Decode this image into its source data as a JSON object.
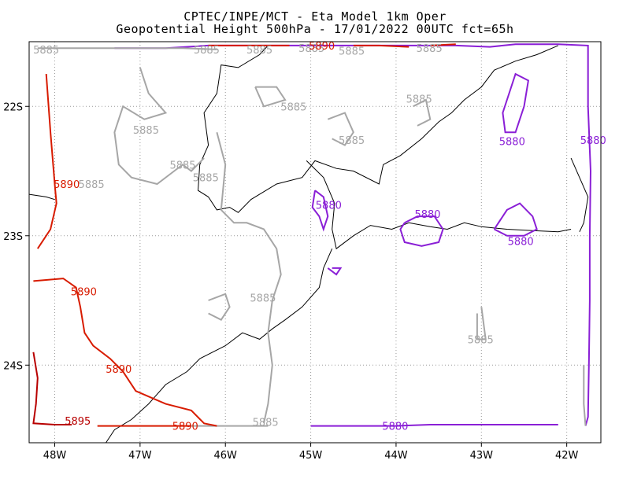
{
  "title_line1": "CPTEC/INPE/MCT -  Eta Model 1km Oper",
  "title_line2": "Geopotential Height 500hPa - 17/01/2022 00UTC fct=65h",
  "colors": {
    "c5880": "#8a1fd6",
    "c5885": "#a6a6a6",
    "c5890": "#d81b00",
    "c5895": "#b80000",
    "coast": "#000000",
    "grid": "#999999"
  },
  "chart_data": {
    "type": "contour",
    "title": "CPTEC/INPE/MCT -  Eta Model 1km Oper",
    "subtitle": "Geopotential Height 500hPa - 17/01/2022 00UTC fct=65h",
    "xlim": [
      -48.3,
      -41.6
    ],
    "ylim": [
      -24.6,
      -21.5
    ],
    "xticks": [
      {
        "value": -48,
        "label": "48W"
      },
      {
        "value": -47,
        "label": "47W"
      },
      {
        "value": -46,
        "label": "46W"
      },
      {
        "value": -45,
        "label": "45W"
      },
      {
        "value": -44,
        "label": "44W"
      },
      {
        "value": -43,
        "label": "43W"
      },
      {
        "value": -42,
        "label": "42W"
      }
    ],
    "yticks": [
      {
        "value": -22,
        "label": "22S"
      },
      {
        "value": -23,
        "label": "23S"
      },
      {
        "value": -24,
        "label": "24S"
      }
    ],
    "grid": true,
    "contours": [
      {
        "level": 5880,
        "label": "5880",
        "color": "#8a1fd6",
        "lines": [
          [
            [
              -42.7,
              -21.95
            ],
            [
              -42.6,
              -21.75
            ],
            [
              -42.45,
              -21.8
            ],
            [
              -42.5,
              -22.0
            ],
            [
              -42.6,
              -22.2
            ],
            [
              -42.72,
              -22.2
            ],
            [
              -42.75,
              -22.05
            ],
            [
              -42.7,
              -21.95
            ]
          ],
          [
            [
              -43.9,
              -22.9
            ],
            [
              -43.75,
              -22.85
            ],
            [
              -43.55,
              -22.85
            ],
            [
              -43.45,
              -22.95
            ],
            [
              -43.5,
              -23.05
            ],
            [
              -43.7,
              -23.08
            ],
            [
              -43.9,
              -23.05
            ],
            [
              -43.95,
              -22.95
            ],
            [
              -43.9,
              -22.9
            ]
          ],
          [
            [
              -42.85,
              -22.95
            ],
            [
              -42.7,
              -22.8
            ],
            [
              -42.55,
              -22.75
            ],
            [
              -42.4,
              -22.85
            ],
            [
              -42.35,
              -22.95
            ],
            [
              -42.5,
              -23.0
            ],
            [
              -42.7,
              -23.0
            ],
            [
              -42.85,
              -22.95
            ]
          ],
          [
            [
              -44.95,
              -22.65
            ],
            [
              -44.85,
              -22.7
            ],
            [
              -44.8,
              -22.85
            ],
            [
              -44.85,
              -22.95
            ],
            [
              -44.9,
              -22.85
            ],
            [
              -44.98,
              -22.78
            ],
            [
              -44.95,
              -22.65
            ]
          ],
          [
            [
              -44.8,
              -23.25
            ],
            [
              -44.7,
              -23.3
            ],
            [
              -44.65,
              -23.25
            ],
            [
              -44.75,
              -23.25
            ]
          ],
          [
            [
              -45.0,
              -24.47
            ],
            [
              -44.4,
              -24.47
            ],
            [
              -44.0,
              -24.47
            ],
            [
              -43.6,
              -24.46
            ],
            [
              -43.2,
              -24.46
            ],
            [
              -42.8,
              -24.46
            ],
            [
              -42.4,
              -24.46
            ],
            [
              -42.1,
              -24.46
            ]
          ],
          [
            [
              -47.3,
              -21.55
            ],
            [
              -46.7,
              -21.55
            ],
            [
              -46.2,
              -21.53
            ],
            [
              -45.6,
              -21.53
            ],
            [
              -45.0,
              -21.53
            ],
            [
              -44.4,
              -21.53
            ],
            [
              -43.9,
              -21.53
            ],
            [
              -43.3,
              -21.53
            ],
            [
              -42.9,
              -21.54
            ],
            [
              -42.6,
              -21.52
            ],
            [
              -42.1,
              -21.52
            ],
            [
              -41.75,
              -21.53
            ],
            [
              -41.75,
              -22.0
            ],
            [
              -41.72,
              -22.5
            ],
            [
              -41.73,
              -23.0
            ],
            [
              -41.73,
              -23.5
            ],
            [
              -41.74,
              -24.0
            ],
            [
              -41.75,
              -24.4
            ],
            [
              -41.78,
              -24.47
            ]
          ]
        ],
        "labels": [
          [
            -42.64,
            -22.27
          ],
          [
            -41.69,
            -22.26
          ],
          [
            -44.79,
            -22.76
          ],
          [
            -43.63,
            -22.83
          ],
          [
            -42.54,
            -23.04
          ],
          [
            -44.01,
            -24.47
          ]
        ]
      },
      {
        "level": 5885,
        "label": "5885",
        "color": "#a6a6a6",
        "lines": [
          [
            [
              -48.2,
              -21.55
            ],
            [
              -47.8,
              -21.55
            ],
            [
              -47.4,
              -21.55
            ],
            [
              -47.0,
              -21.55
            ],
            [
              -46.5,
              -21.55
            ],
            [
              -46.1,
              -21.56
            ]
          ],
          [
            [
              -47.0,
              -21.7
            ],
            [
              -46.9,
              -21.9
            ],
            [
              -46.7,
              -22.05
            ],
            [
              -46.95,
              -22.1
            ],
            [
              -47.2,
              -22.0
            ],
            [
              -47.3,
              -22.2
            ],
            [
              -47.25,
              -22.45
            ],
            [
              -47.1,
              -22.55
            ],
            [
              -46.8,
              -22.6
            ],
            [
              -46.6,
              -22.5
            ],
            [
              -46.5,
              -22.45
            ],
            [
              -46.4,
              -22.5
            ],
            [
              -46.25,
              -22.4
            ]
          ],
          [
            [
              -45.65,
              -21.85
            ],
            [
              -45.4,
              -21.85
            ],
            [
              -45.3,
              -21.95
            ],
            [
              -45.55,
              -22.0
            ],
            [
              -45.65,
              -21.85
            ]
          ],
          [
            [
              -46.1,
              -22.2
            ],
            [
              -46.0,
              -22.45
            ],
            [
              -46.05,
              -22.8
            ],
            [
              -45.9,
              -22.9
            ],
            [
              -45.75,
              -22.9
            ],
            [
              -45.55,
              -22.95
            ],
            [
              -45.4,
              -23.1
            ],
            [
              -45.35,
              -23.3
            ],
            [
              -45.45,
              -23.5
            ],
            [
              -45.5,
              -23.75
            ],
            [
              -45.45,
              -24.0
            ],
            [
              -45.5,
              -24.3
            ],
            [
              -45.55,
              -24.45
            ]
          ],
          [
            [
              -46.2,
              -23.5
            ],
            [
              -46.0,
              -23.45
            ],
            [
              -45.95,
              -23.55
            ],
            [
              -46.05,
              -23.65
            ],
            [
              -46.2,
              -23.6
            ]
          ],
          [
            [
              -44.8,
              -22.1
            ],
            [
              -44.6,
              -22.05
            ],
            [
              -44.5,
              -22.2
            ],
            [
              -44.6,
              -22.3
            ],
            [
              -44.75,
              -22.25
            ]
          ],
          [
            [
              -43.8,
              -22.0
            ],
            [
              -43.65,
              -21.95
            ],
            [
              -43.6,
              -22.1
            ],
            [
              -43.75,
              -22.15
            ]
          ],
          [
            [
              -43.0,
              -23.55
            ],
            [
              -42.95,
              -23.8
            ],
            [
              -43.05,
              -23.8
            ],
            [
              -43.05,
              -23.6
            ]
          ],
          [
            [
              -46.4,
              -24.47
            ],
            [
              -45.9,
              -24.47
            ],
            [
              -45.5,
              -24.47
            ]
          ],
          [
            [
              -41.8,
              -24.0
            ],
            [
              -41.8,
              -24.3
            ],
            [
              -41.78,
              -24.47
            ]
          ]
        ],
        "labels": [
          [
            -48.1,
            -21.56
          ],
          [
            -46.93,
            -22.18
          ],
          [
            -47.57,
            -22.6
          ],
          [
            -46.5,
            -22.45
          ],
          [
            -46.23,
            -22.55
          ],
          [
            -46.22,
            -21.56
          ],
          [
            -45.6,
            -21.56
          ],
          [
            -44.99,
            -21.55
          ],
          [
            -44.52,
            -21.57
          ],
          [
            -43.61,
            -21.55
          ],
          [
            -45.2,
            -22.0
          ],
          [
            -44.52,
            -22.26
          ],
          [
            -43.73,
            -21.94
          ],
          [
            -45.56,
            -23.48
          ],
          [
            -43.01,
            -23.8
          ],
          [
            -45.53,
            -24.44
          ]
        ]
      },
      {
        "level": 5890,
        "label": "5890",
        "color": "#d81b00",
        "lines": [
          [
            [
              -48.1,
              -21.75
            ],
            [
              -48.05,
              -22.2
            ],
            [
              -48.0,
              -22.6
            ],
            [
              -47.98,
              -22.75
            ],
            [
              -48.05,
              -22.95
            ],
            [
              -48.2,
              -23.1
            ]
          ],
          [
            [
              -48.25,
              -23.35
            ],
            [
              -47.9,
              -23.33
            ],
            [
              -47.75,
              -23.4
            ],
            [
              -47.7,
              -23.55
            ],
            [
              -47.65,
              -23.75
            ],
            [
              -47.55,
              -23.85
            ],
            [
              -47.35,
              -23.95
            ],
            [
              -47.2,
              -24.05
            ],
            [
              -47.05,
              -24.2
            ],
            [
              -46.7,
              -24.3
            ],
            [
              -46.4,
              -24.35
            ],
            [
              -46.25,
              -24.45
            ],
            [
              -46.1,
              -24.47
            ]
          ],
          [
            [
              -47.5,
              -24.47
            ],
            [
              -47.2,
              -24.47
            ],
            [
              -46.8,
              -24.47
            ],
            [
              -46.4,
              -24.47
            ]
          ],
          [
            [
              -46.2,
              -21.53
            ],
            [
              -45.9,
              -21.53
            ],
            [
              -45.5,
              -21.53
            ],
            [
              -45.25,
              -21.53
            ]
          ],
          [
            [
              -44.5,
              -21.53
            ],
            [
              -44.2,
              -21.53
            ],
            [
              -43.85,
              -21.54
            ]
          ],
          [
            [
              -43.6,
              -21.53
            ],
            [
              -43.3,
              -21.52
            ]
          ]
        ],
        "labels": [
          [
            -47.86,
            -22.6
          ],
          [
            -47.66,
            -23.43
          ],
          [
            -47.25,
            -24.03
          ],
          [
            -46.47,
            -24.47
          ],
          [
            -44.87,
            -21.53
          ]
        ]
      },
      {
        "level": 5895,
        "label": "5895",
        "color": "#b80000",
        "lines": [
          [
            [
              -48.25,
              -23.9
            ],
            [
              -48.2,
              -24.1
            ],
            [
              -48.22,
              -24.3
            ],
            [
              -48.25,
              -24.45
            ],
            [
              -48.0,
              -24.46
            ],
            [
              -47.8,
              -24.46
            ]
          ]
        ],
        "labels": [
          [
            -47.73,
            -24.43
          ]
        ]
      }
    ],
    "coastline": [
      [
        [
          -48.3,
          -22.68
        ],
        [
          -48.1,
          -22.7
        ],
        [
          -48.0,
          -22.72
        ]
      ],
      [
        [
          -45.5,
          -21.53
        ],
        [
          -45.6,
          -21.6
        ],
        [
          -45.85,
          -21.7
        ],
        [
          -46.05,
          -21.68
        ],
        [
          -46.1,
          -21.9
        ],
        [
          -46.25,
          -22.05
        ],
        [
          -46.2,
          -22.3
        ],
        [
          -46.3,
          -22.45
        ],
        [
          -46.32,
          -22.65
        ],
        [
          -46.2,
          -22.7
        ],
        [
          -46.1,
          -22.8
        ],
        [
          -45.95,
          -22.78
        ],
        [
          -45.85,
          -22.82
        ],
        [
          -45.7,
          -22.72
        ],
        [
          -45.4,
          -22.6
        ],
        [
          -45.1,
          -22.55
        ],
        [
          -44.95,
          -22.42
        ],
        [
          -44.7,
          -22.48
        ],
        [
          -44.5,
          -22.5
        ],
        [
          -44.2,
          -22.6
        ],
        [
          -44.15,
          -22.45
        ],
        [
          -43.95,
          -22.38
        ],
        [
          -43.7,
          -22.25
        ],
        [
          -43.5,
          -22.12
        ],
        [
          -43.35,
          -22.05
        ],
        [
          -43.2,
          -21.95
        ],
        [
          -43.0,
          -21.85
        ],
        [
          -42.85,
          -21.72
        ],
        [
          -42.6,
          -21.65
        ],
        [
          -42.35,
          -21.6
        ],
        [
          -42.1,
          -21.53
        ]
      ],
      [
        [
          -45.05,
          -22.42
        ],
        [
          -44.85,
          -22.55
        ],
        [
          -44.72,
          -22.75
        ],
        [
          -44.75,
          -22.95
        ],
        [
          -44.7,
          -23.1
        ],
        [
          -44.5,
          -23.0
        ],
        [
          -44.3,
          -22.92
        ],
        [
          -44.05,
          -22.95
        ],
        [
          -43.85,
          -22.9
        ],
        [
          -43.6,
          -22.93
        ],
        [
          -43.4,
          -22.95
        ],
        [
          -43.2,
          -22.9
        ],
        [
          -43.0,
          -22.93
        ],
        [
          -42.7,
          -22.95
        ],
        [
          -42.4,
          -22.96
        ],
        [
          -42.1,
          -22.97
        ],
        [
          -41.95,
          -22.95
        ]
      ],
      [
        [
          -44.75,
          -23.1
        ],
        [
          -44.85,
          -23.25
        ],
        [
          -44.9,
          -23.4
        ],
        [
          -45.1,
          -23.55
        ],
        [
          -45.3,
          -23.65
        ],
        [
          -45.45,
          -23.72
        ],
        [
          -45.6,
          -23.8
        ],
        [
          -45.8,
          -23.75
        ],
        [
          -46.0,
          -23.85
        ],
        [
          -46.3,
          -23.95
        ],
        [
          -46.45,
          -24.05
        ],
        [
          -46.7,
          -24.15
        ],
        [
          -46.9,
          -24.3
        ],
        [
          -47.1,
          -24.42
        ],
        [
          -47.3,
          -24.5
        ],
        [
          -47.4,
          -24.6
        ]
      ],
      [
        [
          -41.95,
          -22.4
        ],
        [
          -41.85,
          -22.55
        ],
        [
          -41.75,
          -22.7
        ],
        [
          -41.8,
          -22.9
        ],
        [
          -41.85,
          -22.97
        ]
      ]
    ]
  }
}
